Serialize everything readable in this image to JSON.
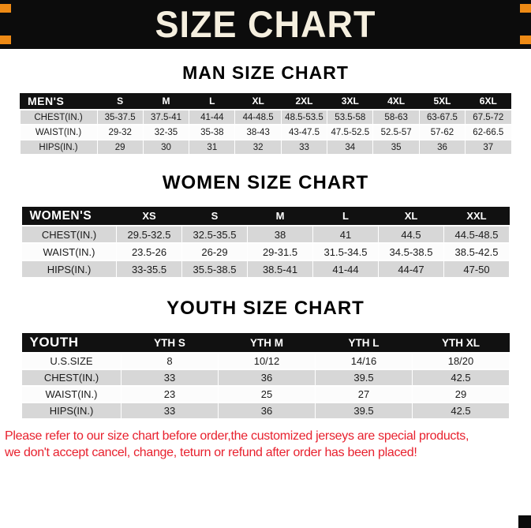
{
  "header": {
    "title": "SIZE CHART"
  },
  "sections": [
    {
      "id": "men",
      "title": "MAN SIZE CHART",
      "table": {
        "corner": "MEN'S",
        "columns": [
          "S",
          "M",
          "L",
          "XL",
          "2XL",
          "3XL",
          "4XL",
          "5XL",
          "6XL"
        ],
        "rows": [
          {
            "label": "CHEST(IN.)",
            "values": [
              "35-37.5",
              "37.5-41",
              "41-44",
              "44-48.5",
              "48.5-53.5",
              "53.5-58",
              "58-63",
              "63-67.5",
              "67.5-72"
            ]
          },
          {
            "label": "WAIST(IN.)",
            "values": [
              "29-32",
              "32-35",
              "35-38",
              "38-43",
              "43-47.5",
              "47.5-52.5",
              "52.5-57",
              "57-62",
              "62-66.5"
            ]
          },
          {
            "label": "HIPS(IN.)",
            "values": [
              "29",
              "30",
              "31",
              "32",
              "33",
              "34",
              "35",
              "36",
              "37"
            ]
          }
        ]
      }
    },
    {
      "id": "women",
      "title": "WOMEN SIZE CHART",
      "table": {
        "corner": "WOMEN'S",
        "columns": [
          "XS",
          "S",
          "M",
          "L",
          "XL",
          "XXL"
        ],
        "rows": [
          {
            "label": "CHEST(IN.)",
            "values": [
              "29.5-32.5",
              "32.5-35.5",
              "38",
              "41",
              "44.5",
              "44.5-48.5"
            ]
          },
          {
            "label": "WAIST(IN.)",
            "values": [
              "23.5-26",
              "26-29",
              "29-31.5",
              "31.5-34.5",
              "34.5-38.5",
              "38.5-42.5"
            ]
          },
          {
            "label": "HIPS(IN.)",
            "values": [
              "33-35.5",
              "35.5-38.5",
              "38.5-41",
              "41-44",
              "44-47",
              "47-50"
            ]
          }
        ]
      }
    },
    {
      "id": "youth",
      "title": "YOUTH SIZE CHART",
      "table": {
        "corner": "YOUTH",
        "columns": [
          "YTH S",
          "YTH M",
          "YTH L",
          "YTH XL"
        ],
        "rows": [
          {
            "label": "U.S.SIZE",
            "values": [
              "8",
              "10/12",
              "14/16",
              "18/20"
            ]
          },
          {
            "label": "CHEST(IN.)",
            "values": [
              "33",
              "36",
              "39.5",
              "42.5"
            ]
          },
          {
            "label": "WAIST(IN.)",
            "values": [
              "23",
              "25",
              "27",
              "29"
            ]
          },
          {
            "label": "HIPS(IN.)",
            "values": [
              "33",
              "36",
              "39.5",
              "42.5"
            ]
          }
        ]
      }
    }
  ],
  "footer": {
    "lines": [
      "Please refer to our size chart before order,the customized jerseys are special products,",
      "we don't accept cancel, change, teturn or refund after order has been placed!"
    ]
  },
  "colors": {
    "accent_orange": "#ee8a15",
    "header_black": "#0c0c0c",
    "title_cream": "#f5efdf",
    "row_gray": "#d7d7d7",
    "notice_red": "#e8212e"
  }
}
